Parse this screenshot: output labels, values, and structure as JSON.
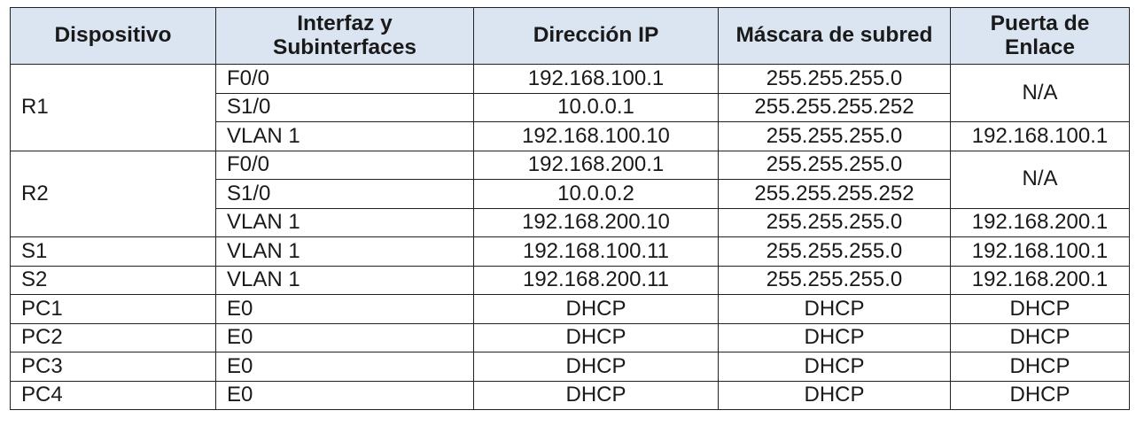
{
  "headers": [
    "Dispositivo",
    "Interfaz y Subinterfaces",
    "Dirección IP",
    "Máscara de subred",
    "Puerta de Enlace"
  ],
  "rows": [
    {
      "device": "R1",
      "interface": "F0/0",
      "ip": "192.168.100.1",
      "mask": "255.255.255.0",
      "gateway": "N/A"
    },
    {
      "device": "",
      "interface": "S1/0",
      "ip": "10.0.0.1",
      "mask": "255.255.255.252",
      "gateway": ""
    },
    {
      "device": "",
      "interface": "VLAN 1",
      "ip": "192.168.100.10",
      "mask": "255.255.255.0",
      "gateway": "192.168.100.1"
    },
    {
      "device": "R2",
      "interface": "F0/0",
      "ip": "192.168.200.1",
      "mask": "255.255.255.0",
      "gateway": "N/A"
    },
    {
      "device": "",
      "interface": "S1/0",
      "ip": "10.0.0.2",
      "mask": "255.255.255.252",
      "gateway": ""
    },
    {
      "device": "",
      "interface": "VLAN 1",
      "ip": "192.168.200.10",
      "mask": "255.255.255.0",
      "gateway": "192.168.200.1"
    },
    {
      "device": "S1",
      "interface": "VLAN 1",
      "ip": "192.168.100.11",
      "mask": "255.255.255.0",
      "gateway": "192.168.100.1"
    },
    {
      "device": "S2",
      "interface": "VLAN 1",
      "ip": "192.168.200.11",
      "mask": "255.255.255.0",
      "gateway": "192.168.200.1"
    },
    {
      "device": "PC1",
      "interface": "E0",
      "ip": "DHCP",
      "mask": "DHCP",
      "gateway": "DHCP"
    },
    {
      "device": "PC2",
      "interface": "E0",
      "ip": "DHCP",
      "mask": "DHCP",
      "gateway": "DHCP"
    },
    {
      "device": "PC3",
      "interface": "E0",
      "ip": "DHCP",
      "mask": "DHCP",
      "gateway": "DHCP"
    },
    {
      "device": "PC4",
      "interface": "E0",
      "ip": "DHCP",
      "mask": "DHCP",
      "gateway": "DHCP"
    }
  ]
}
